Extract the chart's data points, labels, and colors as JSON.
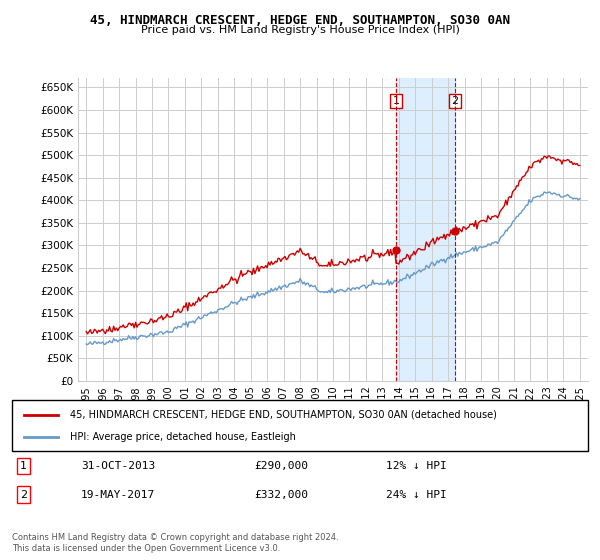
{
  "title": "45, HINDMARCH CRESCENT, HEDGE END, SOUTHAMPTON, SO30 0AN",
  "subtitle": "Price paid vs. HM Land Registry's House Price Index (HPI)",
  "ylabel_ticks": [
    "£0",
    "£50K",
    "£100K",
    "£150K",
    "£200K",
    "£250K",
    "£300K",
    "£350K",
    "£400K",
    "£450K",
    "£500K",
    "£550K",
    "£600K",
    "£650K"
  ],
  "ytick_values": [
    0,
    50000,
    100000,
    150000,
    200000,
    250000,
    300000,
    350000,
    400000,
    450000,
    500000,
    550000,
    600000,
    650000
  ],
  "legend_line1": "45, HINDMARCH CRESCENT, HEDGE END, SOUTHAMPTON, SO30 0AN (detached house)",
  "legend_line2": "HPI: Average price, detached house, Eastleigh",
  "annotation1_label": "1",
  "annotation1_date": "31-OCT-2013",
  "annotation1_price": "£290,000",
  "annotation1_hpi": "12% ↓ HPI",
  "annotation2_label": "2",
  "annotation2_date": "19-MAY-2017",
  "annotation2_price": "£332,000",
  "annotation2_hpi": "24% ↓ HPI",
  "footer": "Contains HM Land Registry data © Crown copyright and database right 2024.\nThis data is licensed under the Open Government Licence v3.0.",
  "line_color_red": "#cc0000",
  "line_color_blue": "#6699cc",
  "shaded_color": "#ddeeff",
  "annotation_color_red": "#cc0000",
  "grid_color": "#cccccc",
  "bg_color": "#ffffff"
}
